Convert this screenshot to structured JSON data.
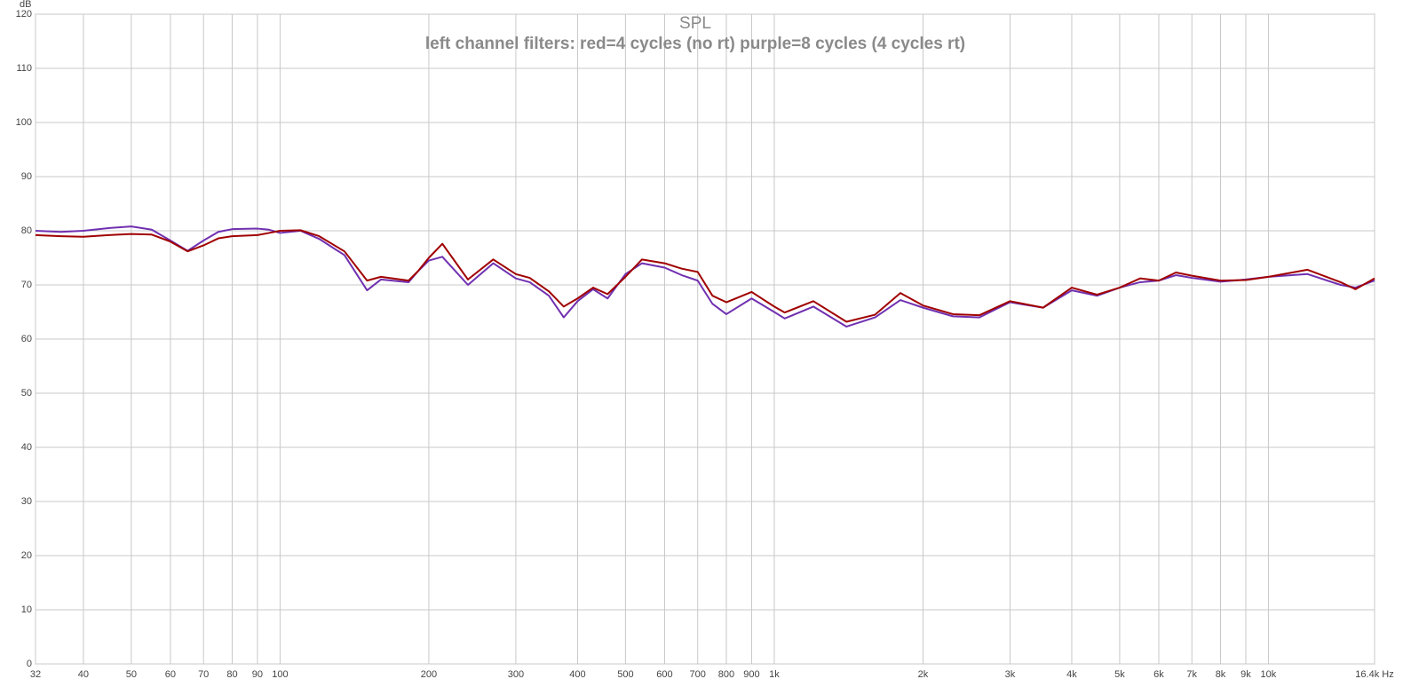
{
  "chart_data": {
    "type": "line",
    "title": "SPL",
    "subtitle": "left channel filters: red=4 cycles (no rt)  purple=8 cycles (4 cycles rt)",
    "y_label": "dB",
    "log_x": true,
    "grid": true,
    "xlim": [
      32,
      16400
    ],
    "ylim": [
      0,
      120
    ],
    "xticks": [
      32,
      40,
      50,
      60,
      70,
      80,
      90,
      100,
      200,
      300,
      400,
      500,
      600,
      700,
      800,
      900,
      {
        "value": 1000,
        "label": "1k"
      },
      {
        "value": 2000,
        "label": "2k"
      },
      {
        "value": 3000,
        "label": "3k"
      },
      {
        "value": 4000,
        "label": "4k"
      },
      {
        "value": 5000,
        "label": "5k"
      },
      {
        "value": 6000,
        "label": "6k"
      },
      {
        "value": 7000,
        "label": "7k"
      },
      {
        "value": 8000,
        "label": "8k"
      },
      {
        "value": 9000,
        "label": "9k"
      },
      {
        "value": 10000,
        "label": "10k"
      },
      {
        "value": 16400,
        "label": "16.4k Hz"
      }
    ],
    "yticks": [
      0,
      10,
      20,
      30,
      40,
      50,
      60,
      70,
      80,
      90,
      100,
      110,
      120
    ],
    "x": [
      32,
      36,
      40,
      45,
      50,
      55,
      60,
      65,
      70,
      75,
      80,
      90,
      95,
      100,
      110,
      120,
      135,
      150,
      160,
      182,
      190,
      200,
      213,
      240,
      270,
      300,
      320,
      350,
      375,
      400,
      430,
      460,
      500,
      540,
      600,
      650,
      700,
      750,
      800,
      900,
      1000,
      1050,
      1200,
      1400,
      1600,
      1800,
      2000,
      2300,
      2600,
      3000,
      3500,
      4000,
      4500,
      5000,
      5500,
      6000,
      6500,
      7000,
      8000,
      9000,
      10000,
      12000,
      14000,
      15000,
      16400
    ],
    "series": [
      {
        "color": "#7030b0",
        "values": [
          80.0,
          79.8,
          80.0,
          80.5,
          80.8,
          80.2,
          78.2,
          76.3,
          78.2,
          79.8,
          80.3,
          80.4,
          80.2,
          79.6,
          80.0,
          78.5,
          75.5,
          69.0,
          71.0,
          70.5,
          72.5,
          74.5,
          75.2,
          70.0,
          74.0,
          71.2,
          70.5,
          68.0,
          64.0,
          67.0,
          69.2,
          67.5,
          72.0,
          74.0,
          73.2,
          71.8,
          70.8,
          66.5,
          64.6,
          67.5,
          65.0,
          63.8,
          66.0,
          62.3,
          64.0,
          67.2,
          65.8,
          64.2,
          64.0,
          66.8,
          65.8,
          69.0,
          68.0,
          69.5,
          70.5,
          70.8,
          71.8,
          71.3,
          70.6,
          71.0,
          71.5,
          72.0,
          70.0,
          69.5,
          70.8
        ]
      },
      {
        "color": "#a00000",
        "values": [
          79.2,
          79.0,
          78.9,
          79.2,
          79.4,
          79.3,
          78.0,
          76.2,
          77.3,
          78.6,
          79.0,
          79.2,
          79.6,
          80.0,
          80.1,
          79.0,
          76.2,
          70.8,
          71.5,
          70.8,
          72.5,
          75.0,
          77.6,
          71.0,
          74.7,
          72.0,
          71.3,
          68.8,
          66.0,
          67.5,
          69.5,
          68.3,
          71.5,
          74.7,
          74.0,
          73.0,
          72.4,
          68.0,
          66.8,
          68.7,
          66.0,
          64.9,
          67.0,
          63.2,
          64.5,
          68.5,
          66.2,
          64.6,
          64.4,
          67.0,
          65.8,
          69.5,
          68.2,
          69.5,
          71.2,
          70.8,
          72.3,
          71.7,
          70.8,
          70.9,
          71.5,
          72.8,
          70.5,
          69.2,
          71.2
        ]
      }
    ]
  }
}
